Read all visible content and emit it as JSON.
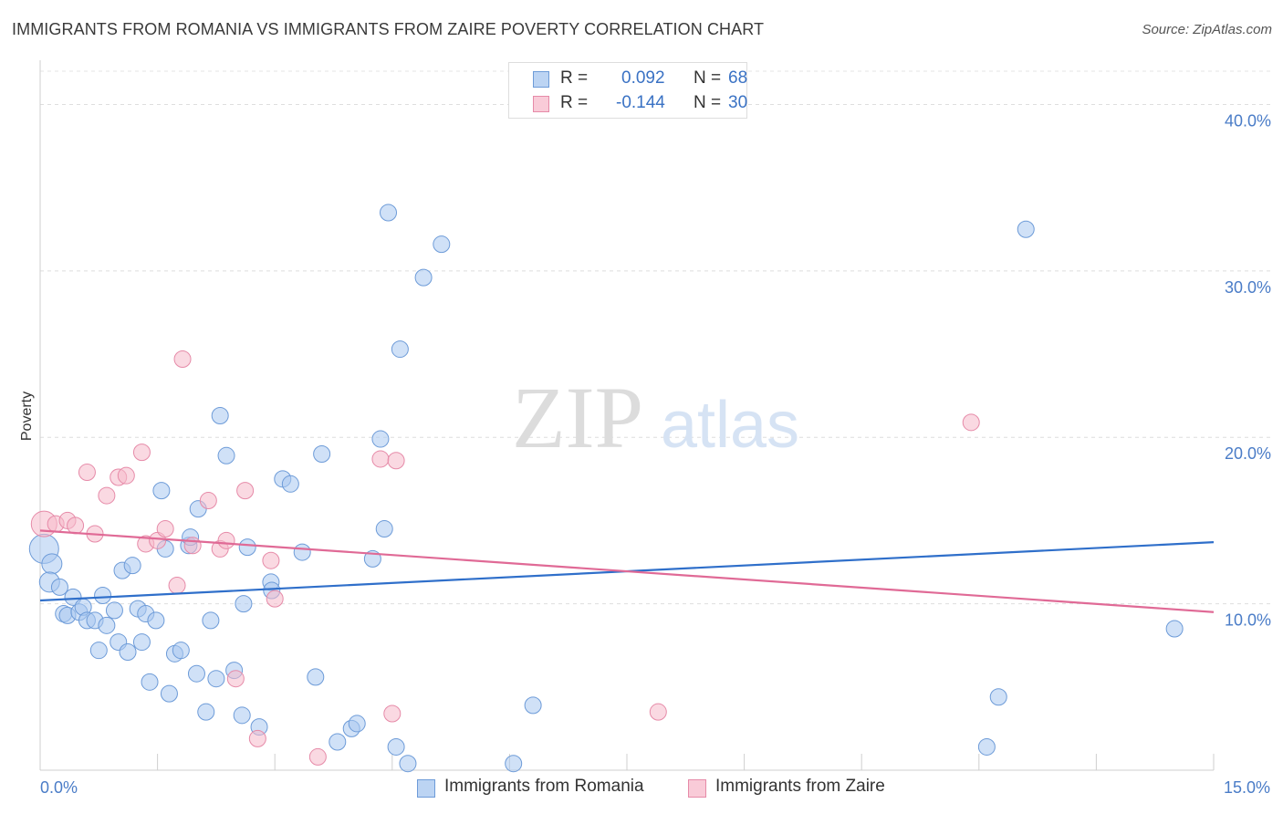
{
  "header": {
    "title": "IMMIGRANTS FROM ROMANIA VS IMMIGRANTS FROM ZAIRE POVERTY CORRELATION CHART",
    "source": "Source: ZipAtlas.com"
  },
  "watermark": {
    "zip": "ZIP",
    "atlas": "atlas"
  },
  "legend": {
    "rows": [
      {
        "r_label": "R =",
        "r_value": "0.092",
        "n_label": "N =",
        "n_value": "68"
      },
      {
        "r_label": "R =",
        "r_value": "-0.144",
        "n_label": "N =",
        "n_value": "30"
      }
    ]
  },
  "colors": {
    "romania_fill": "#a9c8f0",
    "romania_stroke": "#6d9bd8",
    "romania_line": "#2f6fca",
    "zaire_fill": "#f6b9cb",
    "zaire_stroke": "#e68aa8",
    "zaire_line": "#e06a96",
    "tick_text": "#4a7cc7"
  },
  "chart_data": {
    "type": "scatter",
    "title": "IMMIGRANTS FROM ROMANIA VS IMMIGRANTS FROM ZAIRE POVERTY CORRELATION CHART",
    "xlabel": "",
    "ylabel": "Poverty",
    "xlim": [
      0,
      15
    ],
    "ylim": [
      0,
      42
    ],
    "x_ticks": [
      "0.0%",
      "15.0%"
    ],
    "y_ticks": [
      {
        "value": 10,
        "label": "10.0%"
      },
      {
        "value": 20,
        "label": "20.0%"
      },
      {
        "value": 30,
        "label": "30.0%"
      },
      {
        "value": 40,
        "label": "40.0%"
      }
    ],
    "grid": true,
    "legend_position": "top-center",
    "series": [
      {
        "name": "Immigrants from Romania",
        "r": 0.092,
        "n": 68,
        "trend": {
          "x": [
            0,
            15
          ],
          "y": [
            10.2,
            13.7
          ]
        },
        "points": [
          [
            0.05,
            13.3,
            16
          ],
          [
            0.15,
            12.4,
            11
          ],
          [
            0.12,
            11.3,
            11
          ],
          [
            0.25,
            11.0,
            9
          ],
          [
            0.3,
            9.4,
            9
          ],
          [
            0.35,
            9.3,
            9
          ],
          [
            0.42,
            10.4,
            9
          ],
          [
            0.5,
            9.5,
            9
          ],
          [
            0.55,
            9.8,
            9
          ],
          [
            0.6,
            9.0,
            9
          ],
          [
            0.7,
            9.0,
            9
          ],
          [
            0.75,
            7.2,
            9
          ],
          [
            0.8,
            10.5,
            9
          ],
          [
            0.85,
            8.7,
            9
          ],
          [
            0.95,
            9.6,
            9
          ],
          [
            1.0,
            7.7,
            9
          ],
          [
            1.05,
            12.0,
            9
          ],
          [
            1.12,
            7.1,
            9
          ],
          [
            1.18,
            12.3,
            9
          ],
          [
            1.25,
            9.7,
            9
          ],
          [
            1.3,
            7.7,
            9
          ],
          [
            1.35,
            9.4,
            9
          ],
          [
            1.4,
            5.3,
            9
          ],
          [
            1.48,
            9.0,
            9
          ],
          [
            1.55,
            16.8,
            9
          ],
          [
            1.6,
            13.3,
            9
          ],
          [
            1.65,
            4.6,
            9
          ],
          [
            1.72,
            7.0,
            9
          ],
          [
            1.8,
            7.2,
            9
          ],
          [
            1.9,
            13.5,
            9
          ],
          [
            1.92,
            14.0,
            9
          ],
          [
            2.0,
            5.8,
            9
          ],
          [
            2.02,
            15.7,
            9
          ],
          [
            2.12,
            3.5,
            9
          ],
          [
            2.18,
            9.0,
            9
          ],
          [
            2.25,
            5.5,
            9
          ],
          [
            2.3,
            21.3,
            9
          ],
          [
            2.38,
            18.9,
            9
          ],
          [
            2.48,
            6.0,
            9
          ],
          [
            2.58,
            3.3,
            9
          ],
          [
            2.6,
            10.0,
            9
          ],
          [
            2.65,
            13.4,
            9
          ],
          [
            2.8,
            2.6,
            9
          ],
          [
            2.95,
            11.3,
            9
          ],
          [
            2.96,
            10.8,
            9
          ],
          [
            3.1,
            17.5,
            9
          ],
          [
            3.2,
            17.2,
            9
          ],
          [
            3.35,
            13.1,
            9
          ],
          [
            3.52,
            5.6,
            9
          ],
          [
            3.6,
            19.0,
            9
          ],
          [
            3.8,
            1.7,
            9
          ],
          [
            3.98,
            2.5,
            9
          ],
          [
            4.05,
            2.8,
            9
          ],
          [
            4.25,
            12.7,
            9
          ],
          [
            4.35,
            19.9,
            9
          ],
          [
            4.4,
            14.5,
            9
          ],
          [
            4.45,
            33.5,
            9
          ],
          [
            4.55,
            1.4,
            9
          ],
          [
            4.6,
            25.3,
            9
          ],
          [
            4.7,
            0.4,
            9
          ],
          [
            4.9,
            29.6,
            9
          ],
          [
            5.13,
            31.6,
            9
          ],
          [
            6.05,
            0.4,
            9
          ],
          [
            6.3,
            3.9,
            9
          ],
          [
            12.1,
            1.4,
            9
          ],
          [
            12.25,
            4.4,
            9
          ],
          [
            12.6,
            32.5,
            9
          ],
          [
            14.5,
            8.5,
            9
          ]
        ]
      },
      {
        "name": "Immigrants from Zaire",
        "r": -0.144,
        "n": 30,
        "trend": {
          "x": [
            0,
            15
          ],
          "y": [
            14.4,
            9.5
          ]
        },
        "points": [
          [
            0.05,
            14.8,
            14
          ],
          [
            0.2,
            14.8,
            9
          ],
          [
            0.35,
            15.0,
            9
          ],
          [
            0.45,
            14.7,
            9
          ],
          [
            0.6,
            17.9,
            9
          ],
          [
            0.7,
            14.2,
            9
          ],
          [
            0.85,
            16.5,
            9
          ],
          [
            1.0,
            17.6,
            9
          ],
          [
            1.1,
            17.7,
            9
          ],
          [
            1.3,
            19.1,
            9
          ],
          [
            1.35,
            13.6,
            9
          ],
          [
            1.5,
            13.8,
            9
          ],
          [
            1.6,
            14.5,
            9
          ],
          [
            1.75,
            11.1,
            9
          ],
          [
            1.82,
            24.7,
            9
          ],
          [
            1.95,
            13.5,
            9
          ],
          [
            2.15,
            16.2,
            9
          ],
          [
            2.3,
            13.3,
            9
          ],
          [
            2.38,
            13.8,
            9
          ],
          [
            2.5,
            5.5,
            9
          ],
          [
            2.62,
            16.8,
            9
          ],
          [
            2.78,
            1.9,
            9
          ],
          [
            2.95,
            12.6,
            9
          ],
          [
            3.0,
            10.3,
            9
          ],
          [
            3.55,
            0.8,
            9
          ],
          [
            4.35,
            18.7,
            9
          ],
          [
            4.5,
            3.4,
            9
          ],
          [
            4.55,
            18.6,
            9
          ],
          [
            7.9,
            3.5,
            9
          ],
          [
            11.9,
            20.9,
            9
          ]
        ]
      }
    ]
  }
}
